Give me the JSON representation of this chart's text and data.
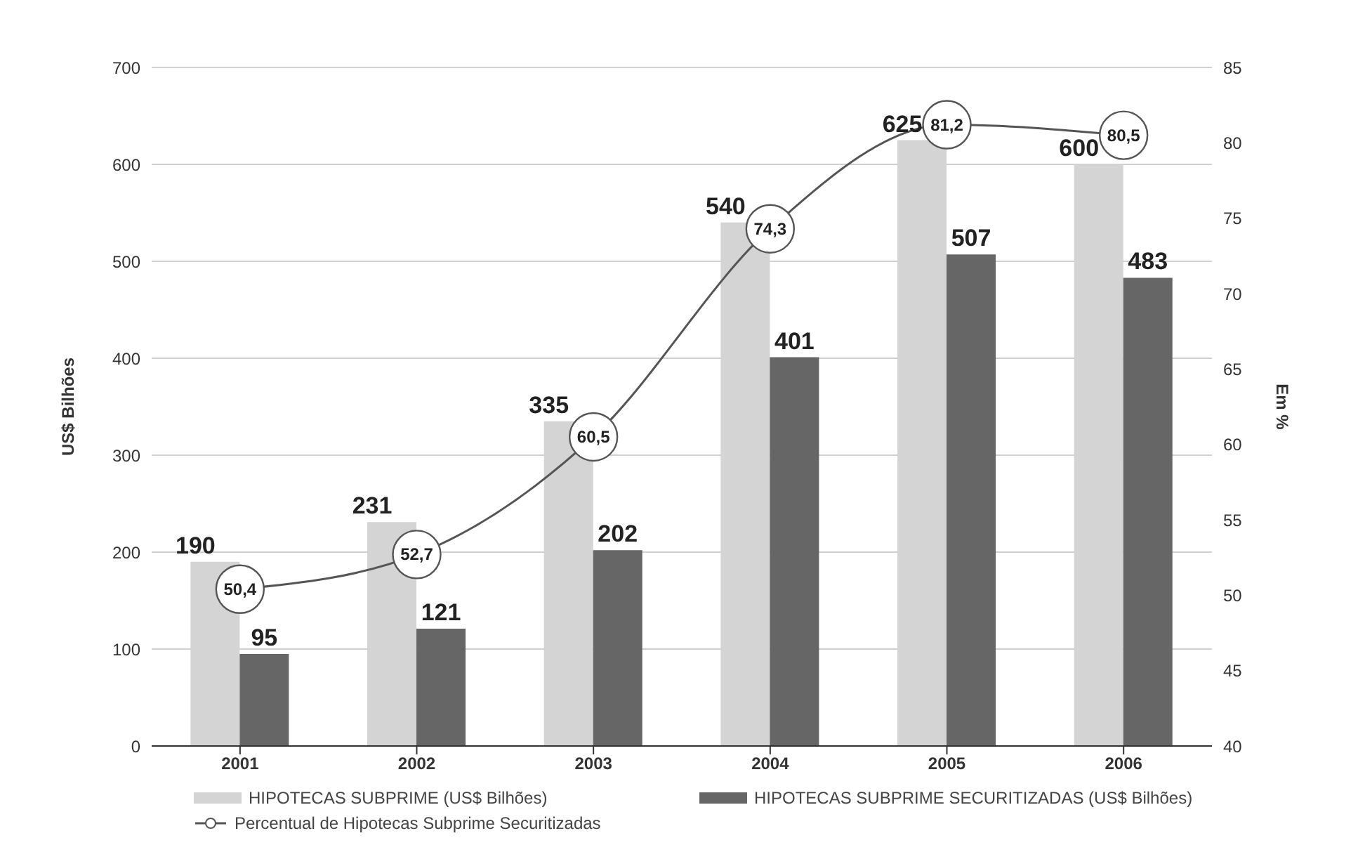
{
  "chart_data": {
    "type": "bar",
    "categories": [
      "2001",
      "2002",
      "2003",
      "2004",
      "2005",
      "2006"
    ],
    "series": [
      {
        "name": "HIPOTECAS SUBPRIME (US$ Bilhões)",
        "color": "#d4d4d4",
        "values": [
          190,
          231,
          335,
          540,
          625,
          600
        ]
      },
      {
        "name": "HIPOTECAS SUBPRIME SECURITIZADAS (US$ Bilhões)",
        "color": "#666666",
        "values": [
          95,
          121,
          202,
          401,
          507,
          483
        ]
      },
      {
        "name": "Percentual de Hipotecas Subprime Securitizadas",
        "type": "line",
        "axis": "y2",
        "color": "#555555",
        "marker": "circle",
        "values": [
          50.4,
          52.7,
          60.5,
          74.3,
          81.2,
          80.5
        ],
        "value_labels": [
          "50,4",
          "52,7",
          "60,5",
          "74,3",
          "81,2",
          "80,5"
        ]
      }
    ],
    "ylabel": "US$ Bilhões",
    "y2label": "Em %",
    "ylim": [
      0,
      700
    ],
    "yticks": [
      0,
      100,
      200,
      300,
      400,
      500,
      600,
      700
    ],
    "y2lim": [
      40,
      85
    ],
    "y2ticks": [
      40,
      45,
      50,
      55,
      60,
      65,
      70,
      75,
      80,
      85
    ],
    "grid": "y",
    "legend": "bottom",
    "data_labels": true
  }
}
